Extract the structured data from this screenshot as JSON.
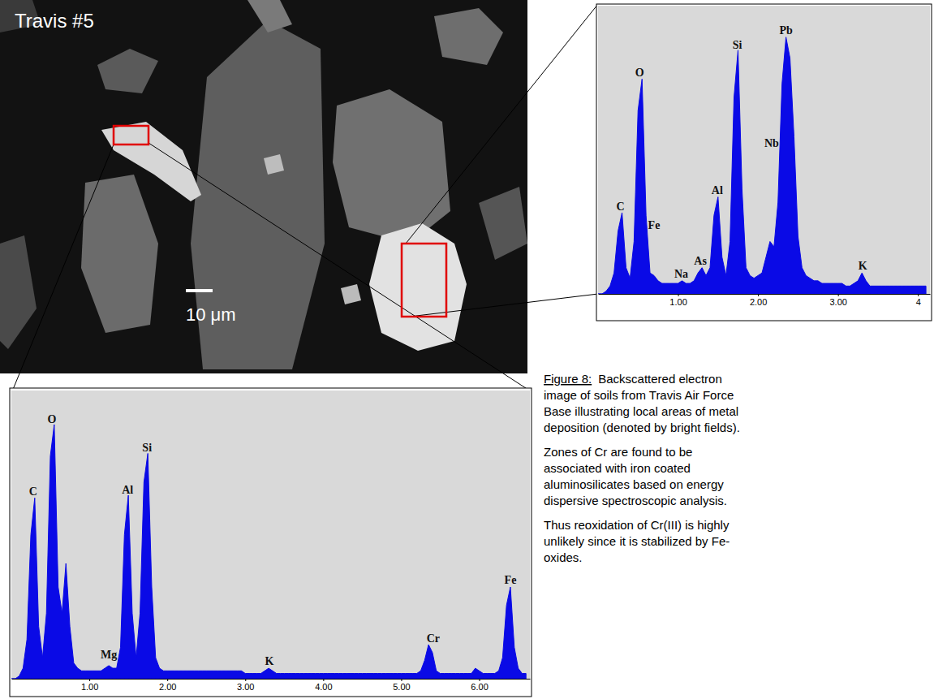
{
  "chart_data": [
    {
      "type": "area",
      "x": [
        0,
        0.05,
        0.1,
        0.15,
        0.2,
        0.25,
        0.3,
        0.35,
        0.4,
        0.45,
        0.5,
        0.55,
        0.6,
        0.65,
        0.7,
        0.75,
        0.8,
        0.85,
        0.9,
        0.95,
        1,
        1.05,
        1.1,
        1.15,
        1.2,
        1.25,
        1.3,
        1.35,
        1.4,
        1.45,
        1.5,
        1.55,
        1.6,
        1.65,
        1.7,
        1.75,
        1.8,
        1.85,
        1.9,
        1.95,
        2,
        2.05,
        2.1,
        2.15,
        2.2,
        2.25,
        2.3,
        2.35,
        2.4,
        2.45,
        2.5,
        2.55,
        2.6,
        2.65,
        2.7,
        2.75,
        2.8,
        2.85,
        2.9,
        2.95,
        3,
        3.05,
        3.1,
        3.15,
        3.2,
        3.25,
        3.3,
        3.35,
        3.4,
        3.45,
        3.5,
        3.55,
        3.6,
        3.65,
        3.7,
        3.75,
        3.8,
        3.85,
        3.9,
        3.95,
        4,
        4.05,
        4.1
      ],
      "values": [
        0,
        0,
        1,
        3,
        8,
        24,
        31,
        10,
        6,
        20,
        70,
        82,
        30,
        8,
        7,
        5,
        4,
        4,
        4,
        4,
        4,
        5,
        4,
        4,
        5,
        8,
        10,
        7,
        10,
        30,
        37,
        14,
        7,
        20,
        75,
        93,
        40,
        10,
        7,
        6,
        7,
        8,
        14,
        20,
        18,
        35,
        80,
        98,
        90,
        60,
        22,
        10,
        7,
        6,
        5,
        5,
        4,
        4,
        4,
        4,
        4,
        4,
        3,
        3,
        4,
        5,
        8,
        5,
        3,
        3,
        3,
        3,
        3,
        3,
        3,
        3,
        3,
        3,
        3,
        3,
        3,
        3,
        3
      ],
      "color": "#0a0ae6",
      "xlim": [
        0,
        4.15
      ],
      "xticks": [
        {
          "value": 1,
          "label": "1.00"
        },
        {
          "value": 2,
          "label": "2.00"
        },
        {
          "value": 3,
          "label": "3.00"
        },
        4
      ],
      "ylim": [
        0,
        110
      ],
      "tick_labels": "x",
      "grid": false,
      "annotations": [
        {
          "text": "C",
          "x": 0.28
        },
        {
          "text": "O",
          "x": 0.52
        },
        {
          "text": "Fe",
          "x": 0.7
        },
        {
          "text": "Na",
          "x": 1.04
        },
        {
          "text": "As",
          "x": 1.28
        },
        {
          "text": "Al",
          "x": 1.49
        },
        {
          "text": "Si",
          "x": 1.74
        },
        {
          "text": "Nb",
          "x": 2.17
        },
        {
          "text": "Pb",
          "x": 2.35
        },
        {
          "text": "K",
          "x": 3.31
        }
      ]
    },
    {
      "type": "area",
      "x": [
        0,
        0.05,
        0.1,
        0.15,
        0.2,
        0.25,
        0.3,
        0.35,
        0.4,
        0.45,
        0.5,
        0.55,
        0.6,
        0.65,
        0.7,
        0.75,
        0.8,
        0.85,
        0.9,
        0.95,
        1,
        1.05,
        1.1,
        1.15,
        1.2,
        1.25,
        1.3,
        1.35,
        1.4,
        1.45,
        1.5,
        1.55,
        1.6,
        1.65,
        1.7,
        1.75,
        1.8,
        1.85,
        1.9,
        1.95,
        2,
        2.05,
        2.1,
        2.15,
        2.2,
        2.25,
        2.3,
        2.35,
        2.4,
        2.45,
        2.5,
        2.55,
        2.6,
        2.65,
        2.7,
        2.75,
        2.8,
        2.85,
        2.9,
        2.95,
        3,
        3.05,
        3.1,
        3.15,
        3.2,
        3.25,
        3.3,
        3.35,
        3.4,
        3.45,
        3.5,
        3.55,
        3.6,
        3.65,
        3.7,
        3.75,
        3.8,
        3.85,
        3.9,
        3.95,
        4,
        4.05,
        4.1,
        4.15,
        4.2,
        4.25,
        4.3,
        4.35,
        4.4,
        4.45,
        4.5,
        4.55,
        4.6,
        4.65,
        4.7,
        4.75,
        4.8,
        4.85,
        4.9,
        4.95,
        5,
        5.05,
        5.1,
        5.15,
        5.2,
        5.25,
        5.3,
        5.35,
        5.4,
        5.45,
        5.5,
        5.55,
        5.6,
        5.65,
        5.7,
        5.75,
        5.8,
        5.85,
        5.9,
        5.95,
        6,
        6.05,
        6.1,
        6.15,
        6.2,
        6.25,
        6.3,
        6.35,
        6.4,
        6.45,
        6.5,
        6.55,
        6.6
      ],
      "values": [
        0,
        0,
        1,
        4,
        15,
        55,
        69,
        20,
        8,
        25,
        85,
        97,
        35,
        25,
        44,
        20,
        6,
        4,
        3,
        3,
        3,
        3,
        3,
        3,
        4,
        5,
        4,
        4,
        12,
        55,
        70,
        25,
        8,
        25,
        75,
        86,
        35,
        8,
        4,
        3,
        3,
        3,
        3,
        3,
        3,
        3,
        3,
        3,
        3,
        3,
        3,
        3,
        3,
        3,
        3,
        3,
        3,
        3,
        3,
        3,
        2,
        2,
        2,
        2,
        2,
        3,
        4,
        3,
        2,
        2,
        2,
        2,
        2,
        2,
        2,
        2,
        2,
        2,
        2,
        2,
        2,
        2,
        2,
        2,
        2,
        2,
        2,
        2,
        2,
        2,
        2,
        2,
        2,
        2,
        2,
        2,
        2,
        2,
        2,
        2,
        2,
        2,
        2,
        2,
        2,
        3,
        7,
        13,
        10,
        3,
        2,
        2,
        2,
        2,
        2,
        2,
        2,
        2,
        2,
        4,
        3,
        2,
        2,
        2,
        2,
        3,
        8,
        28,
        35,
        12,
        4,
        2,
        2
      ],
      "color": "#0a0ae6",
      "xlim": [
        0,
        6.65
      ],
      "xticks": [
        {
          "value": 1,
          "label": "1.00"
        },
        {
          "value": 2,
          "label": "2.00"
        },
        {
          "value": 3,
          "label": "3.00"
        },
        {
          "value": 4,
          "label": "4.00"
        },
        {
          "value": 5,
          "label": "5.00"
        },
        {
          "value": 6,
          "label": "6.00"
        }
      ],
      "ylim": [
        0,
        110
      ],
      "tick_labels": "x",
      "grid": false,
      "annotations": [
        {
          "text": "C",
          "x": 0.28
        },
        {
          "text": "O",
          "x": 0.52
        },
        {
          "text": "Mg",
          "x": 1.25
        },
        {
          "text": "Al",
          "x": 1.49
        },
        {
          "text": "Si",
          "x": 1.74
        },
        {
          "text": "K",
          "x": 3.31
        },
        {
          "text": "Cr",
          "x": 5.41
        },
        {
          "text": "Fe",
          "x": 6.4
        }
      ]
    }
  ],
  "image": {
    "label": "Travis #5",
    "scale_bar": "10 μm"
  },
  "caption": {
    "label": "Figure 8:",
    "paragraphs": [
      [
        "Backscattered electron",
        "image of soils from Travis Air Force",
        "Base illustrating local areas of metal",
        "deposition (denoted by bright fields)."
      ],
      [
        "Zones of Cr are found to be",
        "associated with iron coated",
        "aluminosilicates based on energy",
        "dispersive spectroscopic analysis."
      ],
      [
        "Thus reoxidation of Cr(III) is highly",
        "unlikely since it is stabilized by Fe-",
        "oxides."
      ]
    ]
  }
}
